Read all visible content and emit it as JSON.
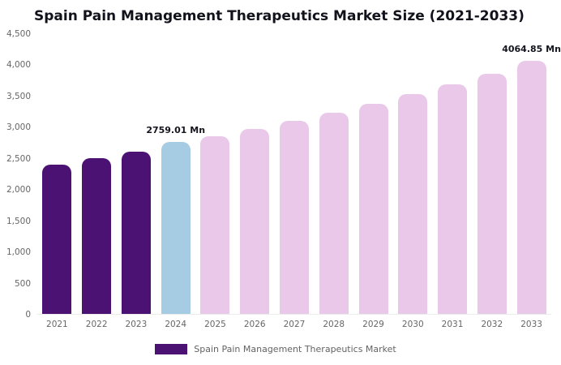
{
  "title": "Spain Pain Management Therapeutics Market Size (2021-2033)",
  "legend": {
    "label": "Spain Pain Management Therapeutics Market",
    "swatch_color": "#4b1273"
  },
  "chart_data": {
    "type": "bar",
    "title": "Spain Pain Management Therapeutics Market Size (2021-2033)",
    "unit": "Mn",
    "categories": [
      "2021",
      "2022",
      "2023",
      "2024",
      "2025",
      "2026",
      "2027",
      "2028",
      "2029",
      "2030",
      "2031",
      "2032",
      "2033"
    ],
    "values": [
      2400,
      2500,
      2610,
      2759.01,
      2860,
      2980,
      3100,
      3240,
      3380,
      3530,
      3690,
      3860,
      4064.85
    ],
    "roles": [
      "historical",
      "historical",
      "historical",
      "current",
      "forecast",
      "forecast",
      "forecast",
      "forecast",
      "forecast",
      "forecast",
      "forecast",
      "forecast",
      "forecast"
    ],
    "colors": {
      "historical": "#4b1273",
      "current": "#a6cce3",
      "forecast": "#e9c8e9"
    },
    "annotations": [
      {
        "index": 3,
        "text": "2759.01 Mn"
      },
      {
        "index": 12,
        "text": "4064.85 Mn"
      }
    ],
    "ylim": [
      0,
      4500
    ],
    "yticks": [
      "0",
      "500",
      "1,000",
      "1,500",
      "2,000",
      "2,500",
      "3,000",
      "3,500",
      "4,000",
      "4,500"
    ],
    "grid": false,
    "legend_position": "bottom",
    "xlabel": "",
    "ylabel": ""
  }
}
